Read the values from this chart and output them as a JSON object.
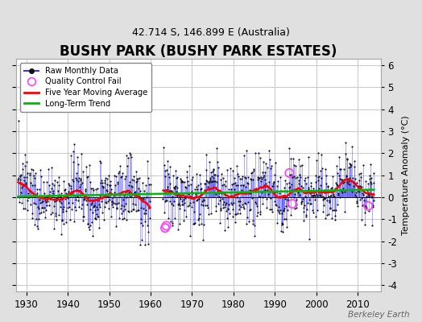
{
  "title": "BUSHY PARK (BUSHY PARK ESTATES)",
  "subtitle": "42.714 S, 146.899 E (Australia)",
  "ylabel": "Temperature Anomaly (°C)",
  "watermark": "Berkeley Earth",
  "start_year": 1928,
  "end_year": 2014,
  "gap_start_year": 1960,
  "gap_end_year": 1963,
  "ylim": [
    -4.3,
    6.3
  ],
  "yticks": [
    -4,
    -3,
    -2,
    -1,
    0,
    1,
    2,
    3,
    4,
    5,
    6
  ],
  "xticks": [
    1930,
    1940,
    1950,
    1960,
    1970,
    1980,
    1990,
    2000,
    2010
  ],
  "bg_color": "#e0e0e0",
  "plot_bg": "#ffffff",
  "grid_color": "#c8c8c8",
  "line_color": "#3333ff",
  "dot_color": "#111111",
  "ma_color": "#ff0000",
  "trend_color": "#00bb00",
  "qc_color": "#ff44ff",
  "title_fontsize": 12,
  "subtitle_fontsize": 9,
  "label_fontsize": 8,
  "tick_fontsize": 8.5,
  "seed": 137
}
